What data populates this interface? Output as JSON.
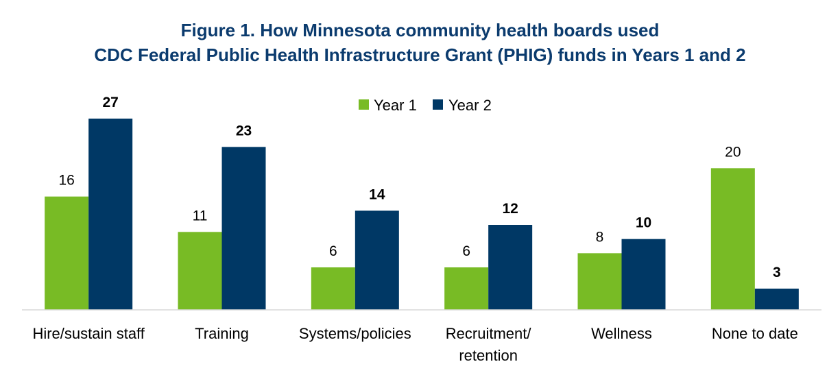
{
  "chart_data": {
    "type": "bar",
    "title_line1": "Figure 1. How Minnesota community health boards used",
    "title_line2": "CDC Federal Public Health Infrastructure Grant (PHIG) funds in Years 1 and 2",
    "categories": [
      [
        "Hire/sustain staff"
      ],
      [
        "Training"
      ],
      [
        "Systems/policies"
      ],
      [
        "Recruitment/",
        "retention"
      ],
      [
        "Wellness"
      ],
      [
        "None to date"
      ]
    ],
    "series": [
      {
        "name": "Year 1",
        "color": "#78bb25",
        "values": [
          16,
          11,
          6,
          6,
          8,
          20
        ]
      },
      {
        "name": "Year 2",
        "color": "#003865",
        "values": [
          27,
          23,
          14,
          12,
          10,
          3
        ]
      }
    ],
    "legend_position": "top-center",
    "ylim": [
      0,
      27
    ],
    "grid": false
  }
}
